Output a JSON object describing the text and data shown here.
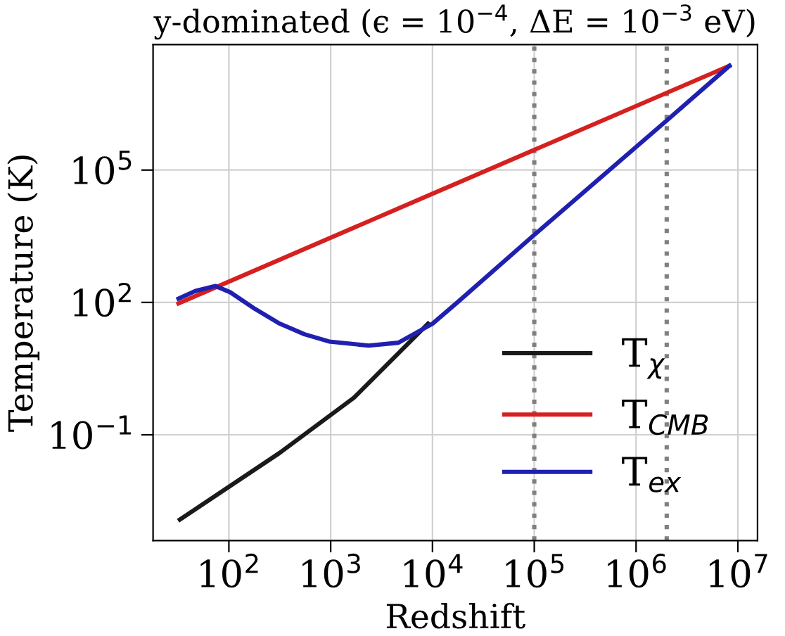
{
  "chart_data": {
    "type": "line",
    "title": "y-dominated (ϵ = 10$^{−4}$, ΔE = 10$^{−3}$ eV)",
    "xlabel": "Redshift",
    "ylabel": "Temperature (K)",
    "log": "xy",
    "xlim": [
      18,
      15600000
    ],
    "ylim": [
      0.0004,
      70000000
    ],
    "xticks": [
      {
        "value": 100,
        "label": "10$^{2}$"
      },
      {
        "value": 1000,
        "label": "10$^{3}$"
      },
      {
        "value": 10000,
        "label": "10$^{4}$"
      },
      {
        "value": 100000,
        "label": "10$^{5}$"
      },
      {
        "value": 1000000,
        "label": "10$^{6}$"
      },
      {
        "value": 10000000,
        "label": "10$^{7}$"
      }
    ],
    "yticks": [
      {
        "value": 0.1,
        "label": "10$^{−1}$"
      },
      {
        "value": 100,
        "label": "10$^{2}$"
      },
      {
        "value": 100000,
        "label": "10$^{5}$"
      }
    ],
    "grid": true,
    "legend": "bottom right",
    "line_style": "solid",
    "marker": "none",
    "ref_lines": [
      {
        "axis": "x",
        "value": 100000,
        "color": "#808080",
        "line_style": "dotted"
      },
      {
        "axis": "x",
        "value": 2000000,
        "color": "#808080",
        "line_style": "dotted"
      }
    ],
    "series": [
      {
        "name": "T$_{χ}$",
        "color": "#1a1a1a",
        "x": [
          33,
          316,
          1690,
          9040
        ],
        "values": [
          0.0012,
          0.039,
          0.69,
          33
        ]
      },
      {
        "name": "T$_{CMB}$",
        "color": "#d62020",
        "x": [
          32,
          10000,
          8260000
        ],
        "values": [
          95,
          29000,
          23000000
        ]
      },
      {
        "name": "T$_{ex}$",
        "color": "#2020b0",
        "x": [
          32,
          47,
          74,
          103,
          181,
          316,
          553,
          966,
          2366,
          4620,
          10000,
          17700,
          100000,
          2040000,
          8260000
        ],
        "values": [
          122,
          182,
          235,
          170,
          71,
          33,
          19,
          13,
          10.5,
          12.2,
          33,
          102,
          3400,
          1380000,
          23000000
        ]
      }
    ]
  }
}
